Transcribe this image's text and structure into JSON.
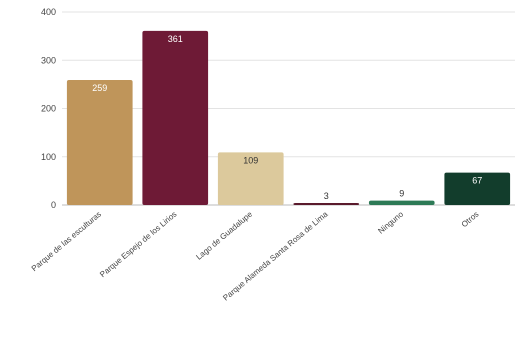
{
  "chart_data": {
    "type": "bar",
    "title": "",
    "xlabel": "",
    "ylabel": "",
    "ylim": [
      0,
      400
    ],
    "yticks": [
      0,
      100,
      200,
      300,
      400
    ],
    "grid": true,
    "legend": "none",
    "categories": [
      "Parque de las esculturas",
      "Parque Espejo de los Lirios",
      "Lago de Guadalupe",
      "Parque Alameda Santa Rosa de Lima",
      "Ninguno",
      "Otros"
    ],
    "values": [
      259,
      361,
      109,
      3,
      9,
      67
    ],
    "data_labels": [
      "259",
      "361",
      "109",
      "3",
      "9",
      "67"
    ],
    "colors": [
      "#bf955a",
      "#6e1a36",
      "#dcc99c",
      "#5a1a2c",
      "#2d7a56",
      "#123d2c"
    ],
    "label_colors": [
      "#ffffff",
      "#ffffff",
      "#333333",
      "#333333",
      "#333333",
      "#ffffff"
    ]
  }
}
